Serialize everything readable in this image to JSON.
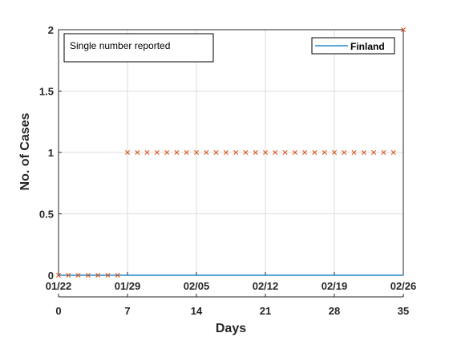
{
  "chart_data": {
    "type": "line",
    "ylabel": "No. of Cases",
    "xlabel": "Days",
    "xlim": [
      0,
      35
    ],
    "ylim": [
      0,
      2
    ],
    "grid": true,
    "annotation": "Single number reported",
    "legend": {
      "location": "top-right",
      "entries": [
        "Finland"
      ]
    },
    "x_day_ticks": [
      "0",
      "7",
      "14",
      "21",
      "28",
      "35"
    ],
    "x_date_ticks": [
      "01/22",
      "01/29",
      "02/05",
      "02/12",
      "02/19",
      "02/26"
    ],
    "y_ticks": [
      "0",
      "0.5",
      "1",
      "1.5",
      "2"
    ],
    "series": [
      {
        "name": "Finland",
        "style": "line",
        "color": "#0072BD",
        "x": [
          0,
          35
        ],
        "y": [
          0,
          0
        ]
      },
      {
        "style": "markers-x",
        "color": "#D95319",
        "x": [
          0,
          1,
          2,
          3,
          4,
          5,
          6,
          7,
          8,
          9,
          10,
          11,
          12,
          13,
          14,
          15,
          16,
          17,
          18,
          19,
          20,
          21,
          22,
          23,
          24,
          25,
          26,
          27,
          28,
          29,
          30,
          31,
          32,
          33,
          34,
          35
        ],
        "y": [
          0,
          0,
          0,
          0,
          0,
          0,
          0,
          1,
          1,
          1,
          1,
          1,
          1,
          1,
          1,
          1,
          1,
          1,
          1,
          1,
          1,
          1,
          1,
          1,
          1,
          1,
          1,
          1,
          1,
          1,
          1,
          1,
          1,
          1,
          1,
          2
        ]
      }
    ]
  }
}
